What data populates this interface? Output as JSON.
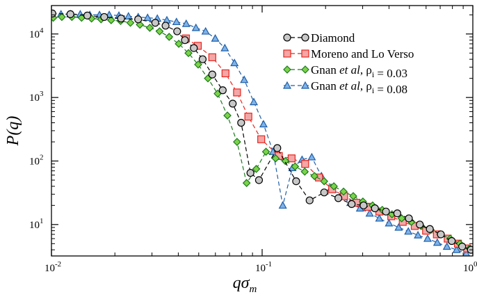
{
  "chart_data": {
    "type": "line",
    "x_scale": "log",
    "y_scale": "log",
    "xlim": [
      0.01,
      1.0
    ],
    "ylim": [
      3.2,
      28000
    ],
    "x_ticks": [
      {
        "value": 0.01,
        "mantissa": "10",
        "exp": "-2"
      },
      {
        "value": 0.1,
        "mantissa": "10",
        "exp": "-1"
      },
      {
        "value": 1.0,
        "mantissa": "10",
        "exp": "0"
      }
    ],
    "y_ticks": [
      {
        "value": 10,
        "mantissa": "10",
        "exp": "1"
      },
      {
        "value": 100,
        "mantissa": "10",
        "exp": "2"
      },
      {
        "value": 1000,
        "mantissa": "10",
        "exp": "3"
      },
      {
        "value": 10000,
        "mantissa": "10",
        "exp": "4"
      }
    ],
    "xlabel": {
      "main": "qσ",
      "sub": "m"
    },
    "ylabel": "P(q)",
    "legend_position": "top-right",
    "series": [
      {
        "name": "Diamond",
        "legend": [
          {
            "t": "Diamond"
          }
        ],
        "marker": "circle",
        "color": "#000000",
        "fill": "#c8c8c8",
        "x": [
          0.0101,
          0.0123,
          0.0148,
          0.0178,
          0.0214,
          0.0258,
          0.0311,
          0.0348,
          0.0395,
          0.043,
          0.0474,
          0.0522,
          0.058,
          0.065,
          0.0725,
          0.0795,
          0.088,
          0.0966,
          0.118,
          0.145,
          0.168,
          0.197,
          0.23,
          0.266,
          0.303,
          0.343,
          0.387,
          0.438,
          0.497,
          0.56,
          0.625,
          0.705,
          0.794,
          0.89,
          0.98
        ],
        "y": [
          21000,
          20500,
          19500,
          18500,
          17500,
          17000,
          15000,
          13500,
          11000,
          8000,
          6000,
          4000,
          2300,
          1300,
          800,
          400,
          65,
          50,
          160,
          48,
          24,
          32,
          26,
          21,
          20,
          18,
          16,
          15,
          12.5,
          10,
          8.5,
          7,
          5.5,
          4.5,
          4
        ]
      },
      {
        "name": "Moreno and Lo Verso",
        "legend": [
          {
            "t": "Moreno and Lo Verso"
          }
        ],
        "marker": "square",
        "color": "#e8231c",
        "fill": "#f3a7a7",
        "x": [
          0.0435,
          0.0495,
          0.058,
          0.067,
          0.076,
          0.086,
          0.099,
          0.12,
          0.138,
          0.16,
          0.186,
          0.215,
          0.245,
          0.28,
          0.318,
          0.36,
          0.41,
          0.465,
          0.53,
          0.6,
          0.675,
          0.76,
          0.85,
          0.94
        ],
        "y": [
          8500,
          6500,
          4300,
          2400,
          1200,
          500,
          220,
          120,
          110,
          90,
          55,
          36,
          28,
          22,
          19,
          16,
          13.5,
          11,
          9.5,
          8,
          7,
          6,
          5,
          4.2
        ]
      },
      {
        "name": "Gnan et al, ρi = 0.03",
        "legend": [
          {
            "t": "Gnan "
          },
          {
            "t": "et al",
            "i": true
          },
          {
            "t": ", ρ"
          },
          {
            "t": "i",
            "sub": true
          },
          {
            "t": " = 0.03"
          }
        ],
        "marker": "diamond",
        "color": "#1a7a1a",
        "fill": "#7cd34a",
        "x": [
          0.0102,
          0.0112,
          0.0125,
          0.0139,
          0.0155,
          0.0172,
          0.0192,
          0.0213,
          0.0237,
          0.0263,
          0.0293,
          0.0326,
          0.0362,
          0.0402,
          0.0447,
          0.0497,
          0.0553,
          0.0615,
          0.0684,
          0.076,
          0.0844,
          0.0938,
          0.1043,
          0.1159,
          0.1289,
          0.1433,
          0.1593,
          0.1771,
          0.1969,
          0.2189,
          0.2434,
          0.2706,
          0.3008,
          0.3344,
          0.3718,
          0.4133,
          0.4595,
          0.5109,
          0.568,
          0.6315,
          0.7021,
          0.7805,
          0.8677,
          0.9647
        ],
        "y": [
          18000,
          18500,
          18500,
          18000,
          17500,
          17000,
          16500,
          16000,
          15000,
          14000,
          12500,
          11000,
          9000,
          7000,
          5000,
          3300,
          2000,
          1150,
          520,
          200,
          45,
          75,
          140,
          110,
          100,
          82,
          68,
          58,
          48,
          40,
          33,
          28,
          23,
          20,
          17,
          14.5,
          12.5,
          11,
          9.5,
          8.2,
          7,
          6,
          5,
          4.2
        ]
      },
      {
        "name": "Gnan et al, ρi = 0.08",
        "legend": [
          {
            "t": "Gnan "
          },
          {
            "t": "et al",
            "i": true
          },
          {
            "t": ", ρ"
          },
          {
            "t": "i",
            "sub": true
          },
          {
            "t": " = 0.08"
          }
        ],
        "marker": "triangle",
        "color": "#1f5fa8",
        "fill": "#7fb3e8",
        "x": [
          0.01,
          0.0111,
          0.0123,
          0.0137,
          0.0152,
          0.0169,
          0.0188,
          0.0209,
          0.0232,
          0.0258,
          0.0286,
          0.0318,
          0.0353,
          0.0392,
          0.0436,
          0.0485,
          0.0539,
          0.0599,
          0.0665,
          0.0739,
          0.0822,
          0.0913,
          0.1015,
          0.1127,
          0.1253,
          0.1392,
          0.1547,
          0.172,
          0.1911,
          0.2124,
          0.236,
          0.2623,
          0.2915,
          0.3239,
          0.36,
          0.4,
          0.4446,
          0.4941,
          0.5491,
          0.6102,
          0.6781,
          0.7536,
          0.8375,
          0.9307
        ],
        "y": [
          20500,
          20500,
          20500,
          20500,
          20000,
          20000,
          20000,
          19500,
          19000,
          18500,
          18000,
          17500,
          16500,
          15500,
          14500,
          12500,
          11000,
          8500,
          6000,
          3500,
          1900,
          850,
          380,
          140,
          20,
          78,
          105,
          115,
          58,
          38,
          28,
          22,
          18,
          15,
          12.5,
          10.5,
          9,
          7.8,
          6.8,
          6,
          5.2,
          4.5,
          4,
          3.5
        ]
      }
    ]
  }
}
